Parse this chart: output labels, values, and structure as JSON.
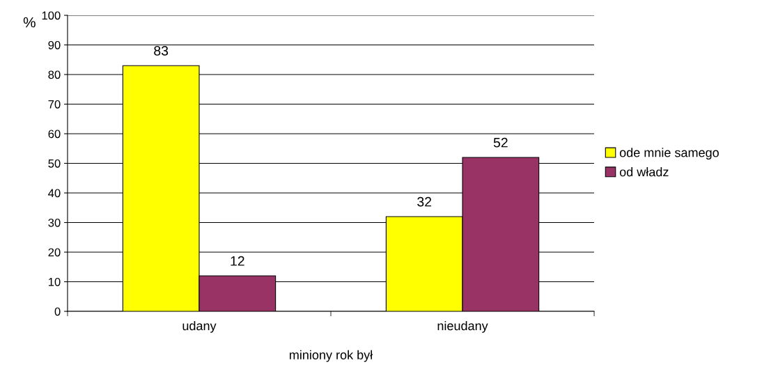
{
  "chart_data": {
    "type": "bar",
    "ylabel": "%",
    "xlabel": "miniony rok był",
    "categories": [
      "udany",
      "nieudany"
    ],
    "series": [
      {
        "name": "ode mnie samego",
        "color": "#ffff00",
        "values": [
          83,
          32
        ]
      },
      {
        "name": "od władz",
        "color": "#993366",
        "values": [
          12,
          52
        ]
      }
    ],
    "ylim": [
      0,
      100
    ],
    "yticks": [
      0,
      10,
      20,
      30,
      40,
      50,
      60,
      70,
      80,
      90,
      100
    ],
    "grid": "y",
    "legend": "right",
    "data_labels": true
  }
}
